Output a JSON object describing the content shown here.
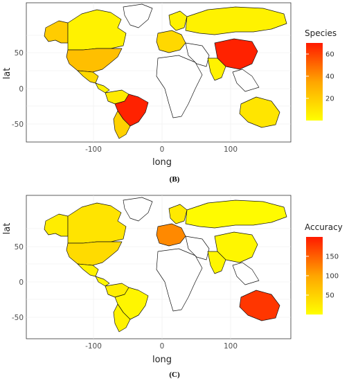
{
  "panels": [
    {
      "id": "B",
      "caption": "(B)",
      "legend": {
        "title": "Species",
        "min": 0,
        "max": 70,
        "ticks": [
          20,
          40,
          60
        ]
      },
      "x_axis": {
        "label": "long",
        "ticks": [
          -100,
          0,
          100
        ]
      },
      "y_axis": {
        "label": "lat",
        "ticks": [
          -50,
          0,
          50
        ]
      },
      "regions": [
        {
          "name": "Canada",
          "value": 5
        },
        {
          "name": "Alaska",
          "value": 20
        },
        {
          "name": "United States",
          "value": 25
        },
        {
          "name": "Mexico",
          "value": 15
        },
        {
          "name": "Central America",
          "value": 5
        },
        {
          "name": "Colombia / Venezuela",
          "value": 8
        },
        {
          "name": "Brazil",
          "value": 68
        },
        {
          "name": "Argentina / Chile",
          "value": 18
        },
        {
          "name": "Greenland",
          "value": null
        },
        {
          "name": "Europe",
          "value": 15
        },
        {
          "name": "Scandinavia",
          "value": 5
        },
        {
          "name": "Africa",
          "value": null
        },
        {
          "name": "Russia",
          "value": 5
        },
        {
          "name": "China",
          "value": 68
        },
        {
          "name": "India",
          "value": 5
        },
        {
          "name": "Australia",
          "value": 10
        }
      ]
    },
    {
      "id": "C",
      "caption": "(C)",
      "legend": {
        "title": "Accuracy",
        "min": 0,
        "max": 200,
        "ticks": [
          50,
          100,
          150
        ]
      },
      "x_axis": {
        "label": "long",
        "ticks": [
          -100,
          0,
          100
        ]
      },
      "y_axis": {
        "label": "lat",
        "ticks": [
          -50,
          0,
          50
        ]
      },
      "regions": [
        {
          "name": "Canada",
          "value": 30
        },
        {
          "name": "Alaska",
          "value": 20
        },
        {
          "name": "United States",
          "value": 40
        },
        {
          "name": "Mexico",
          "value": 15
        },
        {
          "name": "Central America",
          "value": 10
        },
        {
          "name": "Colombia / Venezuela",
          "value": 20
        },
        {
          "name": "Brazil",
          "value": 10
        },
        {
          "name": "Argentina / Chile",
          "value": 15
        },
        {
          "name": "Greenland",
          "value": null
        },
        {
          "name": "Europe",
          "value": 120
        },
        {
          "name": "Scandinavia",
          "value": 25
        },
        {
          "name": "Africa",
          "value": null
        },
        {
          "name": "Russia",
          "value": 5
        },
        {
          "name": "China",
          "value": 10
        },
        {
          "name": "India",
          "value": 10
        },
        {
          "name": "Australia",
          "value": 180
        }
      ]
    }
  ]
}
